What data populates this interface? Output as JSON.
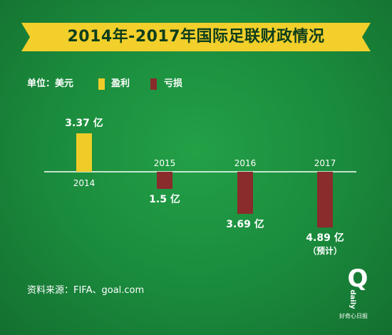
{
  "title": "2014年-2017年国际足联财政情况",
  "legend": {
    "unit_label": "单位：美元",
    "profit_label": "盈利",
    "loss_label": "亏损"
  },
  "colors": {
    "background": "#1a8a3c",
    "title_band": "#f2cf2a",
    "profit": "#f0cc28",
    "loss": "#8a2b2c"
  },
  "chart_data": {
    "type": "bar",
    "categories": [
      "2014",
      "2015",
      "2016",
      "2017"
    ],
    "values": [
      3.37,
      -1.5,
      -3.69,
      -4.89
    ],
    "value_labels": [
      "3.37 亿",
      "1.5 亿",
      "3.69 亿",
      "4.89 亿"
    ],
    "notes": [
      "",
      "",
      "",
      "（预计）"
    ],
    "unit": "亿美元",
    "title": "2014年-2017年国际足联财政情况",
    "legend": [
      "盈利",
      "亏损"
    ],
    "grid": false
  },
  "source": "资料来源：FIFA、goal.com",
  "logo": {
    "letter": "Q",
    "word": "daily",
    "subtitle": "好奇心日报"
  }
}
